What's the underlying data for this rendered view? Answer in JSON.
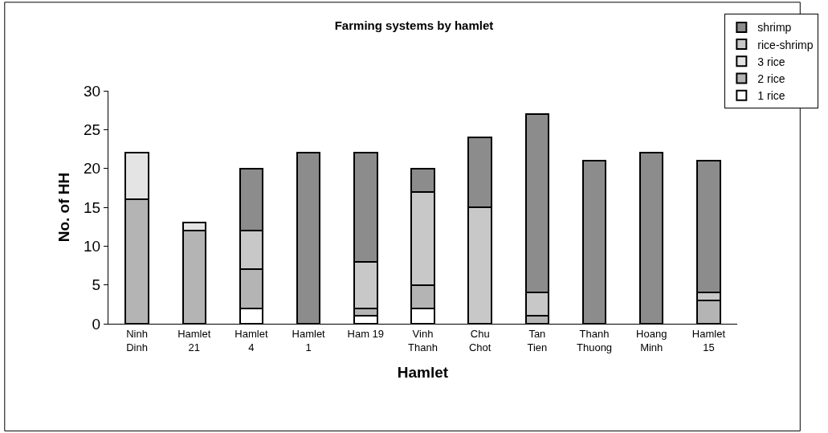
{
  "chart_data": {
    "type": "bar",
    "title": "Farming systems by hamlet",
    "xlabel": "Hamlet",
    "ylabel": "No. of HH",
    "categories": [
      "Ninh Dinh",
      "Hamlet 21",
      "Hamlet 4",
      "Hamlet 1",
      "Ham 19",
      "Vinh Thanh",
      "Chu Chot",
      "Tan Tien",
      "Thanh Thuong",
      "Hoang Minh",
      "Hamlet 15"
    ],
    "stacked": true,
    "ylim": [
      0,
      30
    ],
    "yticks": [
      0,
      5,
      10,
      15,
      20,
      25,
      30
    ],
    "grid": false,
    "legend": "top right",
    "series": [
      {
        "name": "1 rice",
        "color": "#ffffff",
        "values": [
          0,
          0,
          2,
          0,
          1,
          2,
          0,
          0,
          0,
          0,
          0
        ]
      },
      {
        "name": "2 rice",
        "color": "#b4b4b4",
        "values": [
          16,
          12,
          5,
          0,
          1,
          3,
          0,
          1,
          0,
          0,
          3
        ]
      },
      {
        "name": "3 rice",
        "color": "#e4e4e4",
        "values": [
          6,
          1,
          0,
          0,
          0,
          0,
          0,
          0,
          0,
          0,
          0
        ]
      },
      {
        "name": "rice-shrimp",
        "color": "#c8c8c8",
        "values": [
          0,
          0,
          5,
          0,
          6,
          12,
          15,
          3,
          0,
          0,
          1
        ]
      },
      {
        "name": "shrimp",
        "color": "#8c8c8c",
        "values": [
          0,
          0,
          8,
          22,
          14,
          3,
          9,
          23,
          21,
          22,
          17
        ]
      }
    ]
  }
}
